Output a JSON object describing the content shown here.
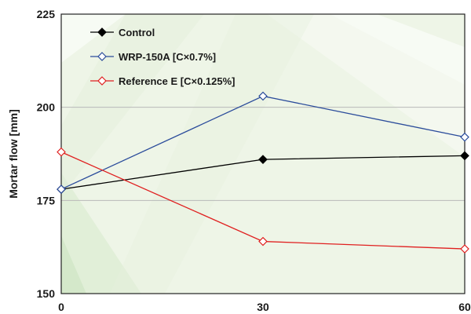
{
  "chart_data": {
    "type": "line",
    "title": "",
    "xlabel": "",
    "ylabel": "Mortar flow [mm]",
    "x": [
      0,
      30,
      60
    ],
    "xticks": [
      "0",
      "30",
      "60"
    ],
    "yticks": [
      "150",
      "175",
      "200",
      "225"
    ],
    "xlim": [
      0,
      60
    ],
    "ylim": [
      150,
      225
    ],
    "grid": "horizontal",
    "legend_position": "top-left",
    "series": [
      {
        "name": "Control",
        "values": [
          178,
          186,
          187
        ],
        "color": "#000000",
        "marker": "filled-diamond"
      },
      {
        "name": "WRP-150A [C×0.7%]",
        "values": [
          178,
          203,
          192
        ],
        "color": "#2b4c9b",
        "marker": "open-diamond"
      },
      {
        "name": "Reference E [C×0.125%]",
        "values": [
          188,
          164,
          162
        ],
        "color": "#e02020",
        "marker": "open-diamond"
      }
    ]
  }
}
